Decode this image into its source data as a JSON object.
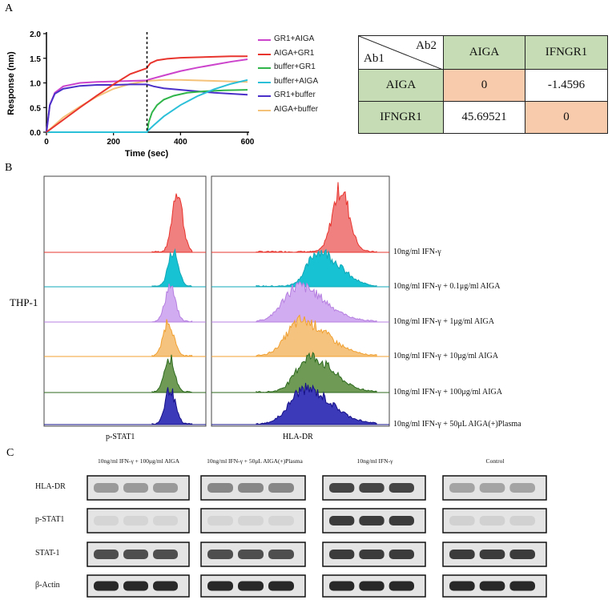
{
  "panels": {
    "a": "A",
    "b": "B",
    "c": "C"
  },
  "chart_data": {
    "type": "line",
    "xlabel": "Time (sec)",
    "ylabel": "Response (nm)",
    "xlim": [
      0,
      600
    ],
    "ylim": [
      0,
      2.0
    ],
    "xticks": [
      "0",
      "200",
      "400",
      "600"
    ],
    "yticks": [
      "0.0",
      "0.5",
      "1.0",
      "1.5",
      "2.0"
    ],
    "dashed_vline_x": 300,
    "series": [
      {
        "name": "GR1+AIGA",
        "color": "#cc44cc",
        "x": [
          0,
          10,
          25,
          50,
          100,
          150,
          200,
          250,
          300,
          301,
          350,
          400,
          450,
          500,
          550,
          600
        ],
        "y": [
          0,
          0.55,
          0.8,
          0.93,
          1.0,
          1.02,
          1.03,
          1.04,
          1.05,
          1.06,
          1.15,
          1.24,
          1.31,
          1.37,
          1.43,
          1.48
        ]
      },
      {
        "name": "AIGA+GR1",
        "color": "#e8352e",
        "x": [
          0,
          50,
          100,
          150,
          200,
          250,
          300,
          302,
          310,
          330,
          360,
          400,
          450,
          500,
          550,
          600
        ],
        "y": [
          0,
          0.25,
          0.5,
          0.74,
          0.97,
          1.18,
          1.3,
          1.33,
          1.4,
          1.46,
          1.49,
          1.51,
          1.52,
          1.53,
          1.54,
          1.54
        ]
      },
      {
        "name": "buffer+GR1",
        "color": "#2fb54a",
        "x": [
          0,
          300,
          301,
          305,
          315,
          330,
          350,
          380,
          420,
          470,
          530,
          600
        ],
        "y": [
          0,
          0,
          0.02,
          0.2,
          0.4,
          0.55,
          0.66,
          0.74,
          0.8,
          0.83,
          0.85,
          0.86
        ]
      },
      {
        "name": "buffer+AIGA",
        "color": "#2bbfd8",
        "x": [
          0,
          300,
          301,
          320,
          350,
          400,
          450,
          500,
          550,
          600
        ],
        "y": [
          0,
          0,
          0.02,
          0.14,
          0.32,
          0.55,
          0.73,
          0.87,
          0.98,
          1.06
        ]
      },
      {
        "name": "GR1+buffer",
        "color": "#4b2fc9",
        "x": [
          0,
          10,
          25,
          50,
          100,
          150,
          200,
          250,
          300,
          320,
          350,
          400,
          450,
          500,
          550,
          600
        ],
        "y": [
          0,
          0.55,
          0.78,
          0.88,
          0.94,
          0.96,
          0.96,
          0.97,
          0.97,
          0.93,
          0.89,
          0.86,
          0.83,
          0.8,
          0.78,
          0.76
        ]
      },
      {
        "name": "AIGA+buffer",
        "color": "#f5c27a",
        "x": [
          0,
          50,
          100,
          150,
          200,
          250,
          300,
          350,
          400,
          450,
          500,
          550,
          600
        ],
        "y": [
          0,
          0.3,
          0.52,
          0.72,
          0.88,
          0.98,
          1.04,
          1.06,
          1.06,
          1.05,
          1.04,
          1.03,
          1.02
        ]
      }
    ]
  },
  "table": {
    "corner_top": "Ab2",
    "corner_bottom": "Ab1",
    "col_headers": [
      "AIGA",
      "IFNGR1"
    ],
    "rows": [
      {
        "label": "AIGA",
        "cells": [
          "0",
          "-1.4596"
        ]
      },
      {
        "label": "IFNGR1",
        "cells": [
          "45.69521",
          "0"
        ]
      }
    ]
  },
  "flow": {
    "cell_line": "THP-1",
    "x_label_left": "p-STAT1",
    "x_label_right": "HLA-DR",
    "conditions": [
      {
        "label": "10ng/ml IFN-γ",
        "color": "#e8352e",
        "fill": "#f08080"
      },
      {
        "label": "10ng/ml IFN-γ + 0.1μg/ml AIGA",
        "color": "#12a8b8",
        "fill": "#17c2d2"
      },
      {
        "label": "10ng/ml IFN-γ + 1μg/ml AIGA",
        "color": "#b57fe0",
        "fill": "#d2acf0"
      },
      {
        "label": "10ng/ml IFN-γ + 10μg/ml AIGA",
        "color": "#f0a030",
        "fill": "#f6c37f"
      },
      {
        "label": "10ng/ml IFN-γ + 100μg/ml AIGA",
        "color": "#2e6b1f",
        "fill": "#6e9a55"
      },
      {
        "label": "10ng/ml IFN-γ + 50μL AIGA(+)Plasma",
        "color": "#16108a",
        "fill": "#3c3ab8"
      }
    ]
  },
  "western": {
    "groups": [
      "10ng/ml IFN-γ + 100μg/ml AIGA",
      "10ng/ml IFN-γ + 50μL AIGA(+)Plasma",
      "10ng/ml IFN-γ",
      "Control"
    ],
    "proteins": [
      "HLA-DR",
      "p-STAT1",
      "STAT-1",
      "β-Actin"
    ],
    "band_intensity": [
      [
        0.35,
        0.45,
        0.8,
        0.3
      ],
      [
        0.04,
        0.04,
        0.85,
        0.06
      ],
      [
        0.75,
        0.75,
        0.85,
        0.85
      ],
      [
        0.95,
        0.95,
        0.95,
        0.95
      ]
    ]
  }
}
